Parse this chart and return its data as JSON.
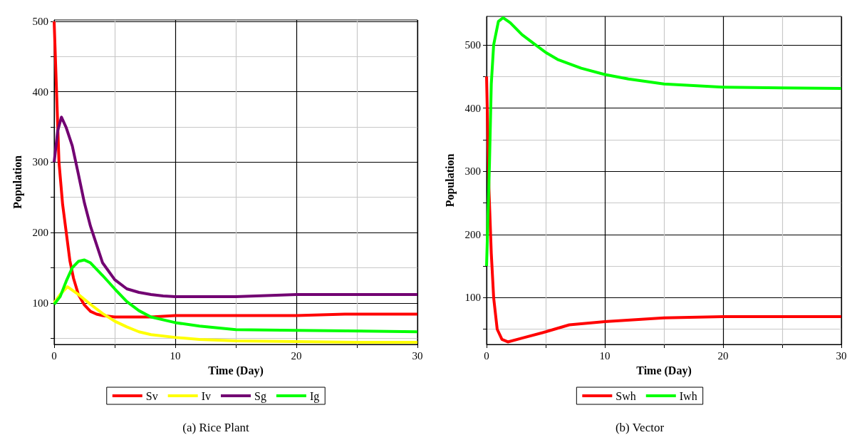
{
  "chart_data": [
    {
      "type": "line",
      "title": "(a) Rice Plant",
      "xlabel": "Time (Day)",
      "ylabel": "Population",
      "xlim": [
        0,
        30
      ],
      "xticks": [
        0,
        {
          "value": 5,
          "label": null
        },
        10,
        {
          "value": 15,
          "label": null
        },
        20,
        {
          "value": 25,
          "label": null
        },
        30
      ],
      "ylim": [
        41,
        502
      ],
      "yticks": [
        {
          "value": 50,
          "label": null
        },
        100,
        {
          "value": 150,
          "label": null
        },
        200,
        {
          "value": 250,
          "label": null
        },
        300,
        {
          "value": 350,
          "label": null
        },
        400,
        {
          "value": 450,
          "label": null
        },
        500
      ],
      "grid": true,
      "legend": "bottom",
      "series": [
        {
          "name": "Sv",
          "color": "#ff0000",
          "x": [
            0,
            0.2,
            0.4,
            0.7,
            1,
            1.3,
            1.6,
            2,
            2.5,
            3,
            3.5,
            4,
            5,
            8,
            10,
            20,
            24,
            30
          ],
          "values": [
            500,
            400,
            300,
            240,
            200,
            160,
            135,
            112,
            97,
            88,
            84,
            82,
            80,
            80,
            82,
            82,
            84,
            84
          ]
        },
        {
          "name": "Iv",
          "color": "#ffff00",
          "x": [
            0,
            0.5,
            1.1,
            2,
            3,
            4,
            5,
            6,
            7,
            8,
            10,
            12,
            15,
            20,
            25,
            30
          ],
          "values": [
            100,
            112,
            123,
            112,
            98,
            85,
            74,
            66,
            59,
            55,
            51,
            48,
            46,
            45,
            44,
            44
          ]
        },
        {
          "name": "Sg",
          "color": "#720072",
          "x": [
            0,
            0.3,
            0.6,
            1,
            1.5,
            2,
            2.5,
            3,
            4,
            5,
            6,
            7,
            8,
            9,
            10,
            15,
            20,
            30
          ],
          "values": [
            300,
            345,
            364,
            349,
            323,
            283,
            242,
            209,
            157,
            133,
            120,
            115,
            112,
            110,
            109,
            109,
            112,
            112
          ]
        },
        {
          "name": "Ig",
          "color": "#00ff00",
          "x": [
            0,
            0.5,
            1,
            1.5,
            2,
            2.5,
            3,
            4,
            5,
            6,
            7,
            8,
            10,
            12,
            15,
            20,
            30
          ],
          "values": [
            98,
            109,
            131,
            150,
            159,
            161,
            157,
            139,
            120,
            102,
            89,
            80,
            72,
            67,
            62,
            61,
            59
          ]
        }
      ]
    },
    {
      "type": "line",
      "title": "(b) Vector",
      "xlabel": "Time (Day)",
      "ylabel": "Population",
      "xlim": [
        0,
        30
      ],
      "xticks": [
        0,
        {
          "value": 5,
          "label": null
        },
        10,
        {
          "value": 15,
          "label": null
        },
        20,
        {
          "value": 25,
          "label": null
        },
        30
      ],
      "ylim": [
        26,
        545
      ],
      "yticks": [
        {
          "value": 50,
          "label": null
        },
        100,
        {
          "value": 150,
          "label": null
        },
        200,
        {
          "value": 250,
          "label": null
        },
        300,
        {
          "value": 350,
          "label": null
        },
        400,
        {
          "value": 450,
          "label": null
        },
        500
      ],
      "grid": true,
      "legend": "bottom",
      "series": [
        {
          "name": "Swh",
          "color": "#ff0000",
          "x": [
            0,
            0.2,
            0.4,
            0.6,
            0.9,
            1.3,
            1.8,
            3,
            5,
            7,
            10,
            15,
            20,
            30
          ],
          "values": [
            450,
            273,
            170,
            100,
            50,
            34,
            30,
            36,
            46,
            57,
            62,
            68,
            70,
            70
          ]
        },
        {
          "name": "Iwh",
          "color": "#00ff00",
          "x": [
            0,
            0.25,
            0.4,
            0.6,
            1,
            1.4,
            2,
            3,
            4,
            5,
            6,
            8,
            10,
            12,
            15,
            20,
            25,
            30
          ],
          "values": [
            150,
            314,
            438,
            500,
            537,
            543,
            535,
            516,
            502,
            488,
            477,
            463,
            453,
            446,
            438,
            433,
            432,
            431
          ]
        }
      ]
    }
  ]
}
